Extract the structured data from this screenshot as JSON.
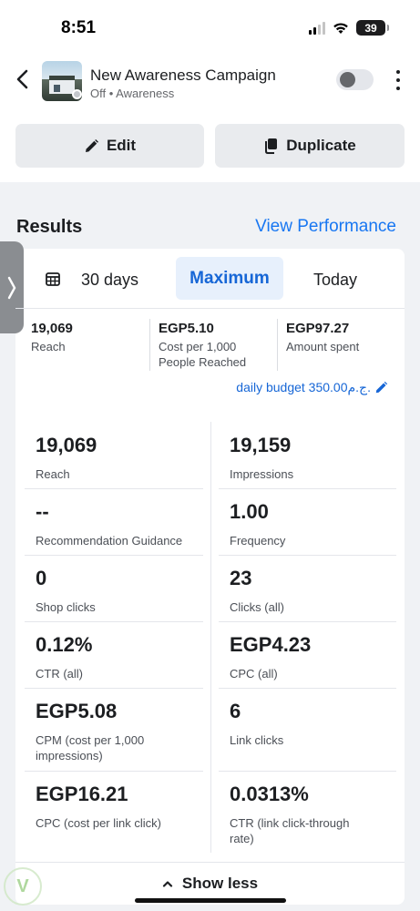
{
  "status_bar": {
    "time": "8:51",
    "battery": "39"
  },
  "header": {
    "title": "New Awareness Campaign",
    "subtitle": "Off • Awareness"
  },
  "actions": {
    "edit_label": "Edit",
    "duplicate_label": "Duplicate"
  },
  "results": {
    "title": "Results",
    "view_performance": "View Performance",
    "range": {
      "days": "30 days",
      "selected": "Maximum",
      "today": "Today"
    },
    "summary": [
      {
        "value": "19,069",
        "label": "Reach"
      },
      {
        "value": "EGP5.10",
        "label": "Cost per 1,000 People Reached"
      },
      {
        "value": "EGP97.27",
        "label": "Amount spent"
      }
    ],
    "daily_budget": "daily budget 350.00ج.م.",
    "metrics_left": [
      {
        "value": "19,069",
        "label": "Reach"
      },
      {
        "value": "--",
        "label": "Recommendation Guidance"
      },
      {
        "value": "0",
        "label": "Shop clicks"
      },
      {
        "value": "0.12%",
        "label": "CTR (all)"
      },
      {
        "value": "EGP5.08",
        "label": "CPM (cost per 1,000 impressions)"
      },
      {
        "value": "EGP16.21",
        "label": "CPC (cost per link click)"
      }
    ],
    "metrics_right": [
      {
        "value": "19,159",
        "label": "Impressions"
      },
      {
        "value": "1.00",
        "label": "Frequency"
      },
      {
        "value": "23",
        "label": "Clicks (all)"
      },
      {
        "value": "EGP4.23",
        "label": "CPC (all)"
      },
      {
        "value": "6",
        "label": "Link clicks"
      },
      {
        "value": "0.0313%",
        "label": "CTR (link click-through rate)"
      }
    ],
    "show_less": "Show less"
  },
  "colors": {
    "accent": "#1877f2",
    "selected_bg": "#e7f0fc",
    "page_bg": "#f0f2f5"
  },
  "icons": [
    "back-chevron-icon",
    "pencil-icon",
    "duplicate-icon",
    "calendar-icon",
    "chevron-up-icon",
    "side-chevron-icon"
  ]
}
